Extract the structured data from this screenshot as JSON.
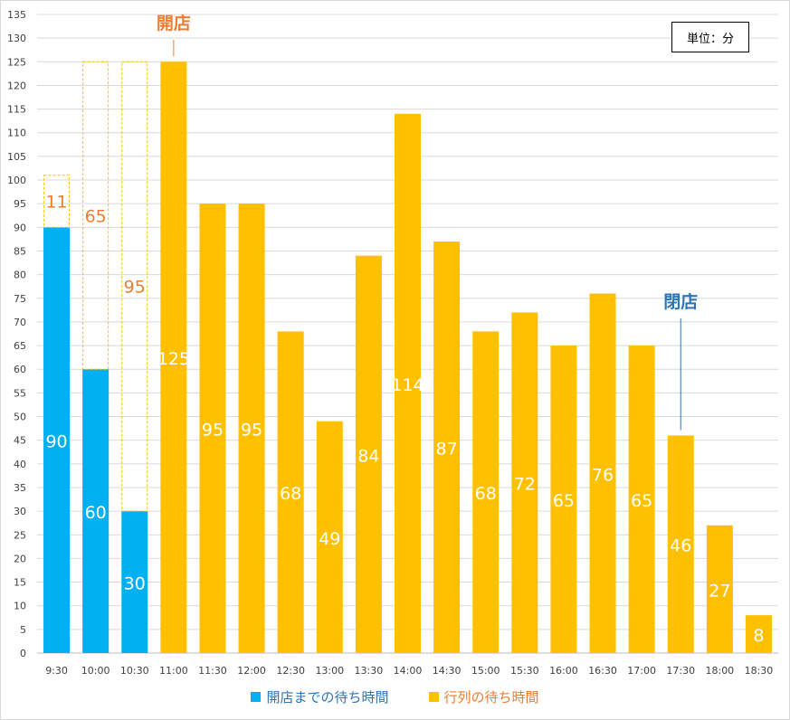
{
  "chart_data": {
    "type": "bar",
    "stacked": true,
    "categories": [
      "9:30",
      "10:00",
      "10:30",
      "11:00",
      "11:30",
      "12:00",
      "12:30",
      "13:00",
      "13:30",
      "14:00",
      "14:30",
      "15:00",
      "15:30",
      "16:00",
      "16:30",
      "17:00",
      "17:30",
      "18:00",
      "18:30"
    ],
    "series": [
      {
        "name": "開店までの待ち時間",
        "color": "#00b0f0",
        "values": [
          90,
          60,
          30,
          null,
          null,
          null,
          null,
          null,
          null,
          null,
          null,
          null,
          null,
          null,
          null,
          null,
          null,
          null,
          null
        ]
      },
      {
        "name": "行列の待ち時間",
        "color": "#ffc000",
        "values": [
          null,
          null,
          null,
          125,
          95,
          95,
          68,
          49,
          84,
          114,
          87,
          68,
          72,
          65,
          76,
          65,
          46,
          27,
          8
        ]
      }
    ],
    "remainder_values": [
      11,
      65,
      95
    ],
    "remainder_color": "#ed7d31",
    "ylim": [
      0,
      135
    ],
    "ytick_step": 5,
    "grid": true,
    "legend_position": "bottom",
    "unit_label": "単位：分",
    "annotations": [
      {
        "text": "開店",
        "category": "11:00",
        "color": "#ed7d31"
      },
      {
        "text": "閉店",
        "category": "17:30",
        "color": "#2e75b6"
      }
    ]
  }
}
